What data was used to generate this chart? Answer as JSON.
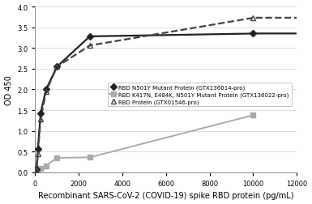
{
  "title": "",
  "xlabel": "Recombinant SARS-CoV-2 (COVID-19) spike RBD protein (pg/mL)",
  "ylabel": "OD 450",
  "xlim": [
    0,
    12000
  ],
  "ylim": [
    0,
    4
  ],
  "xticks": [
    0,
    2000,
    4000,
    6000,
    8000,
    10000,
    12000
  ],
  "yticks": [
    0,
    0.5,
    1.0,
    1.5,
    2.0,
    2.5,
    3.0,
    3.5,
    4.0
  ],
  "series1_label": "RBD N501Y Mutant Protein (GTX136014-pro)",
  "series1_x": [
    31.25,
    62.5,
    125,
    250,
    500,
    1000,
    2500,
    10000
  ],
  "series1_y": [
    0.06,
    0.08,
    0.56,
    1.43,
    2.0,
    2.55,
    3.28,
    3.35
  ],
  "series1_color": "#222222",
  "series1_marker": "D",
  "series1_markersize": 4,
  "series1_linestyle": "-",
  "series1_linewidth": 1.6,
  "series2_label": "RBD K417N, E484K, N501Y Mutant Protein (GTX136022-pro)",
  "series2_x": [
    31.25,
    62.5,
    125,
    250,
    500,
    1000,
    2500,
    10000
  ],
  "series2_y": [
    0.04,
    0.05,
    0.07,
    0.1,
    0.16,
    0.35,
    0.36,
    1.38
  ],
  "series2_color": "#aaaaaa",
  "series2_marker": "s",
  "series2_markersize": 4,
  "series2_linestyle": "-",
  "series2_linewidth": 1.4,
  "series3_label": "RBD Protein (GTX01546-pro)",
  "series3_x": [
    31.25,
    62.5,
    125,
    250,
    500,
    1000,
    2500,
    10000
  ],
  "series3_y": [
    0.05,
    0.07,
    0.45,
    1.28,
    1.95,
    2.55,
    3.06,
    3.73
  ],
  "series3_color": "#444444",
  "series3_marker": "^",
  "series3_markersize": 5,
  "series3_linestyle": "--",
  "series3_linewidth": 1.6,
  "background_color": "#ffffff",
  "legend_fontsize": 5.0,
  "axis_fontsize": 7,
  "tick_fontsize": 6
}
